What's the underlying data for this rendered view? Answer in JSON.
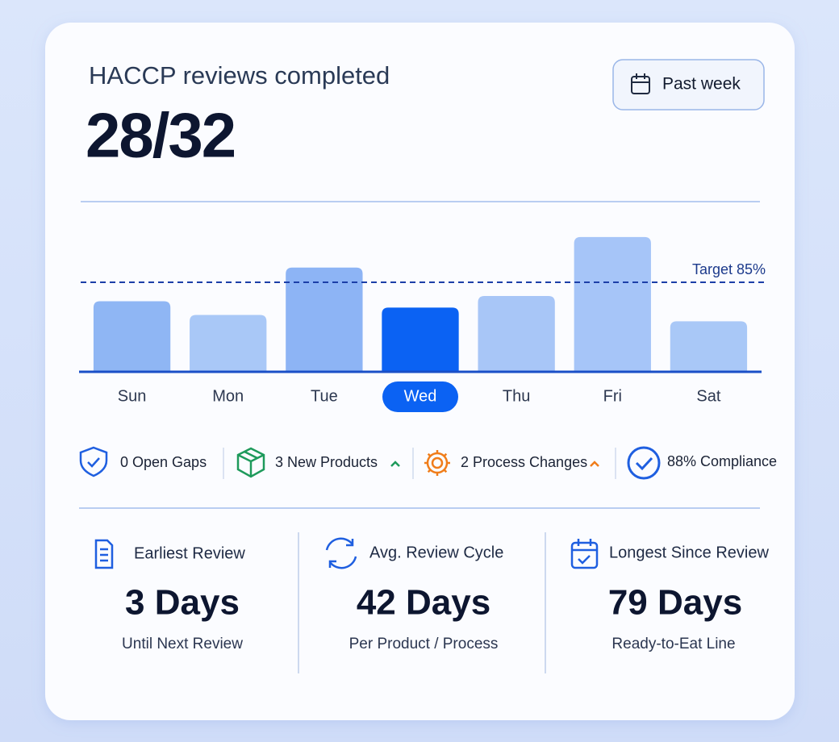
{
  "header": {
    "title": "HACCP reviews completed",
    "value": "28/32",
    "period_button": "Past week"
  },
  "chart_data": {
    "type": "bar",
    "categories": [
      "Sun",
      "Mon",
      "Tue",
      "Wed",
      "Thu",
      "Fri",
      "Sat"
    ],
    "values": [
      67,
      54,
      99,
      61,
      72,
      128,
      48
    ],
    "colors": [
      "#8fb6f4",
      "#a9c8f7",
      "#8db4f5",
      "#0b62f3",
      "#a8c6f7",
      "#a6c5f8",
      "#a9c8f7"
    ],
    "highlight_index": 3,
    "ylim": [
      0,
      138
    ],
    "target": {
      "value": 85,
      "label": "Target 85%"
    }
  },
  "stats": [
    "0 Open Gaps",
    "3 New Products",
    "2 Process Changes",
    "88% Compliance"
  ],
  "metrics": [
    {
      "label": "Earliest Review",
      "value": "3 Days",
      "sub": "Until Next Review"
    },
    {
      "label": "Avg. Review Cycle",
      "value": "42 Days",
      "sub": "Per Product / Process"
    },
    {
      "label": "Longest Since Review",
      "value": "79 Days",
      "sub": "Ready-to-Eat Line"
    }
  ]
}
